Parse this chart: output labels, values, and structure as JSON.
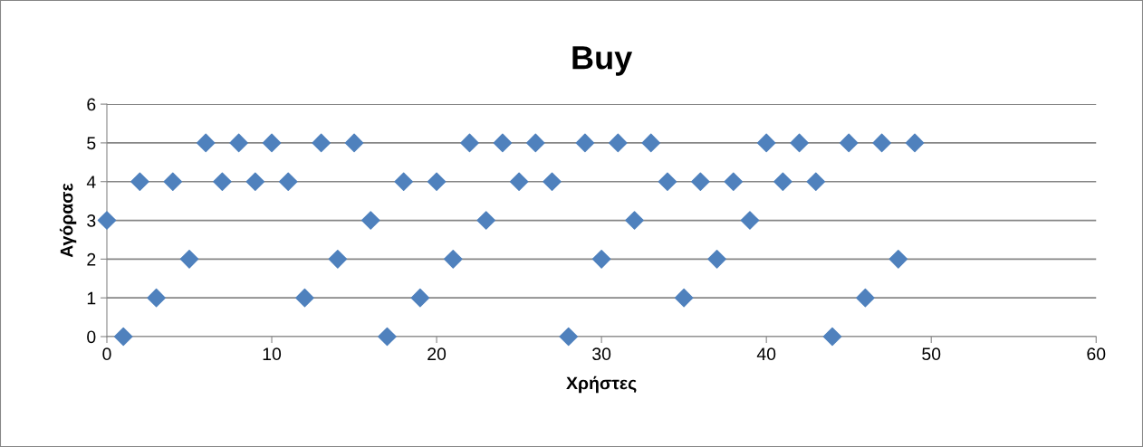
{
  "chart_data": {
    "type": "scatter",
    "title": "Buy",
    "xlabel": "Χρήστες",
    "ylabel": "Αγόρασε",
    "x": [
      0,
      1,
      2,
      3,
      4,
      5,
      6,
      7,
      8,
      9,
      10,
      11,
      12,
      13,
      14,
      15,
      16,
      17,
      18,
      19,
      20,
      21,
      22,
      23,
      24,
      25,
      26,
      27,
      28,
      29,
      30,
      31,
      32,
      33,
      34,
      35,
      36,
      37,
      38,
      39,
      40,
      41,
      42,
      43,
      44,
      45,
      46,
      47,
      48,
      49
    ],
    "series": [
      {
        "color": "#4f81bd",
        "values": [
          3,
          0,
          4,
          1,
          4,
          2,
          5,
          4,
          5,
          4,
          5,
          4,
          1,
          5,
          2,
          5,
          3,
          0,
          4,
          1,
          4,
          2,
          5,
          3,
          5,
          4,
          5,
          4,
          0,
          5,
          2,
          5,
          3,
          5,
          4,
          1,
          4,
          2,
          4,
          3,
          5,
          4,
          5,
          4,
          0,
          5,
          1,
          5,
          2,
          5
        ]
      }
    ],
    "xlim": [
      0,
      60
    ],
    "xticks": [
      0,
      10,
      20,
      30,
      40,
      50,
      60
    ],
    "ylim": [
      0,
      6
    ],
    "yticks": [
      0,
      1,
      2,
      3,
      4,
      5,
      6
    ],
    "grid": "y",
    "marker": "diamond",
    "legend": false
  }
}
